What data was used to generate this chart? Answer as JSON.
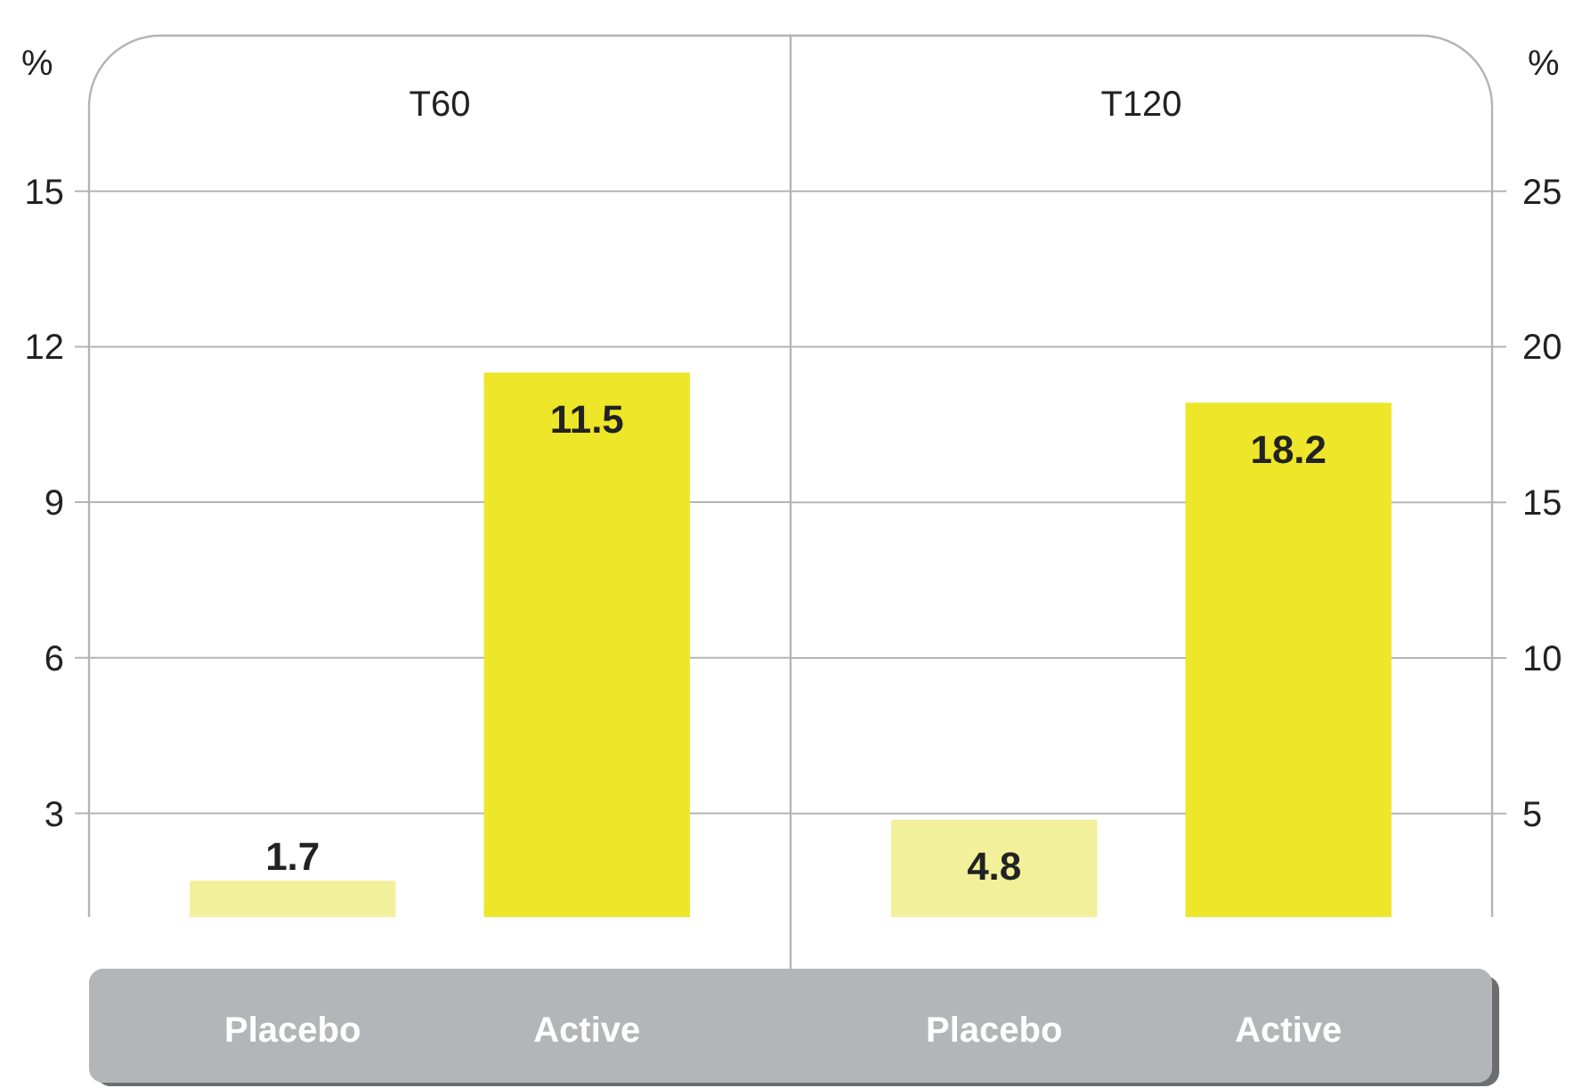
{
  "chart_data": [
    {
      "type": "bar",
      "title": "T60",
      "ylabel": "%",
      "categories": [
        "Placebo",
        "Active"
      ],
      "values": [
        1.7,
        11.5
      ],
      "colors": [
        "#f3f09b",
        "#ede629"
      ],
      "ylim": [
        1,
        18
      ],
      "yticks": [
        3,
        6,
        9,
        12,
        15
      ],
      "grid": "y",
      "data_labels": true
    },
    {
      "type": "bar",
      "title": "T120",
      "y2label": "%",
      "categories": [
        "Placebo",
        "Active"
      ],
      "series": [
        {
          "axis": "y2",
          "values": [
            4.8,
            18.2
          ],
          "colors": [
            "#f3f09b",
            "#ede629"
          ]
        }
      ],
      "y2lim": [
        1.67,
        30
      ],
      "y2ticks": [
        5,
        10,
        15,
        20,
        25
      ],
      "grid": "y",
      "data_labels": true
    }
  ]
}
